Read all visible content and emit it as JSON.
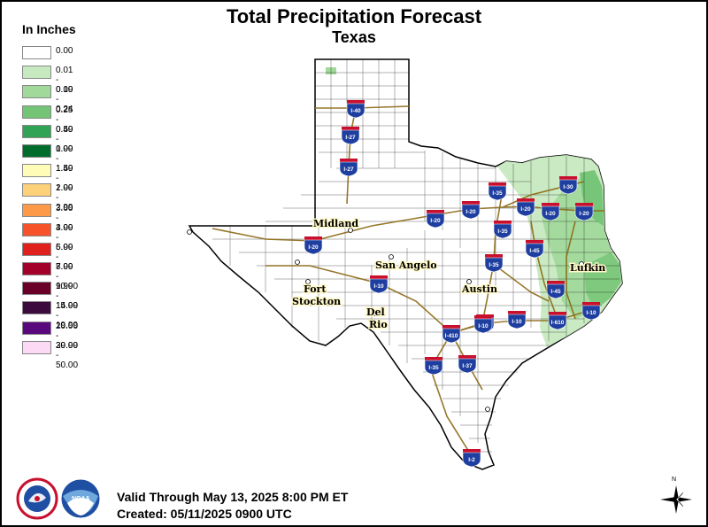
{
  "title": "Total Precipitation Forecast",
  "subtitle": "Texas",
  "legend": {
    "title": "In Inches",
    "items": [
      {
        "label": "0.00",
        "color": "#ffffff"
      },
      {
        "label": "0.01 - 0.09",
        "color": "#c7e9c0"
      },
      {
        "label": "0.10 - 0.24",
        "color": "#a1d99b"
      },
      {
        "label": "0.25 - 0.49",
        "color": "#74c476"
      },
      {
        "label": "0.50 - 0.99",
        "color": "#31a354"
      },
      {
        "label": "1.00 - 1.49",
        "color": "#006d2c"
      },
      {
        "label": "1.50 - 1.99",
        "color": "#fffcb8"
      },
      {
        "label": "2.00 - 2.99",
        "color": "#fdd07a"
      },
      {
        "label": "3.00 - 3.99",
        "color": "#fd9a4a"
      },
      {
        "label": "4.00 - 5.99",
        "color": "#f6532b"
      },
      {
        "label": "6.00 - 7.99",
        "color": "#e0201c"
      },
      {
        "label": "8.00 - 9.99",
        "color": "#a3002a"
      },
      {
        "label": "10.00 - 14.99",
        "color": "#6a0028"
      },
      {
        "label": "15.00 - 19.99",
        "color": "#3c0a3c"
      },
      {
        "label": "20.00 - 29.99",
        "color": "#5a087e"
      },
      {
        "label": "30.00 - 50.00",
        "color": "#fcd9f5"
      }
    ]
  },
  "cities": [
    "Midland",
    "San Angelo",
    "Fort",
    "Stockton",
    "Del",
    "Rio",
    "Austin",
    "Lufkin"
  ],
  "interstates": [
    "I-40",
    "I-27",
    "I-27",
    "I-20",
    "I-20",
    "I-20",
    "I-35",
    "I-35",
    "I-35",
    "I-30",
    "I-20",
    "I-20",
    "I-20",
    "I-45",
    "I-45",
    "I-10",
    "I-10",
    "I-10",
    "I-10",
    "I-610",
    "I-10",
    "I-410",
    "I-37",
    "I-35",
    "I-2"
  ],
  "valid": "Valid Through May 13, 2025 8:00 PM ET",
  "created": "Created: 05/11/2025 0900 UTC",
  "compass_label": "N",
  "logos": [
    "nws-logo",
    "noaa-logo"
  ]
}
